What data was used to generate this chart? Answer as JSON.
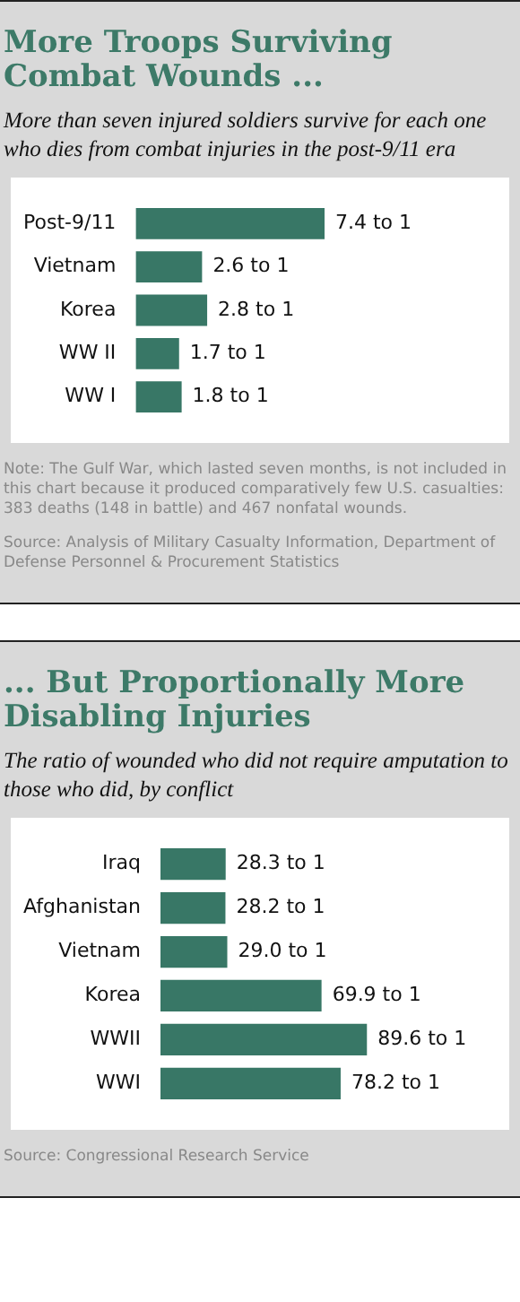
{
  "chart_data": [
    {
      "type": "bar",
      "orientation": "horizontal",
      "title": "More Troops Surviving Combat Wounds ...",
      "subtitle": "More than seven injured soldiers survive for each one who dies from combat injuries in the post-9/11 era",
      "categories": [
        "Post-9/11",
        "Vietnam",
        "Korea",
        "WW II",
        "WW I"
      ],
      "values": [
        7.4,
        2.6,
        2.8,
        1.7,
        1.8
      ],
      "value_labels": [
        "7.4 to 1",
        "2.6 to 1",
        "2.8 to 1",
        "1.7 to 1",
        "1.8 to 1"
      ],
      "color": "#387766",
      "tick_labels": "y",
      "legend": false,
      "annotations": [
        "Note: The Gulf War, which lasted seven months, is not included in this chart because it produced comparatively few U.S. casualties: 383 deaths (148 in battle) and 467 nonfatal wounds.",
        "Source: Analysis of Military Casualty Information, Department of Defense Personnel & Procurement Statistics"
      ]
    },
    {
      "type": "bar",
      "orientation": "horizontal",
      "title": "... But Proportionally More Disabling Injuries",
      "subtitle": "The ratio of wounded who did not require amputation to those who did, by conflict",
      "categories": [
        "Iraq",
        "Afghanistan",
        "Vietnam",
        "Korea",
        "WWII",
        "WWI"
      ],
      "values": [
        28.3,
        28.2,
        29.0,
        69.9,
        89.6,
        78.2
      ],
      "value_labels": [
        "28.3 to 1",
        "28.2 to 1",
        "29.0 to 1",
        "69.9 to 1",
        "89.6 to 1",
        "78.2 to 1"
      ],
      "color": "#387766",
      "tick_labels": "y",
      "legend": false,
      "annotations": [
        "Source: Congressional Research Service"
      ]
    }
  ]
}
